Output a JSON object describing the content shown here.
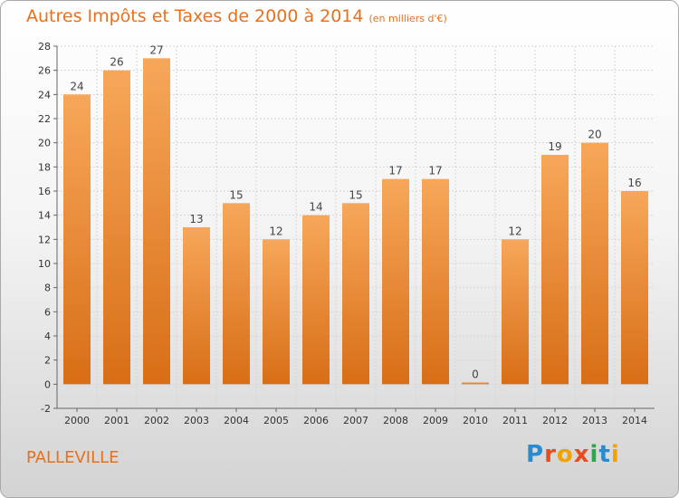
{
  "title": "Autres Impôts et Taxes de 2000 à 2014",
  "subtitle": "(en milliers d'€)",
  "commune": "PALLEVILLE",
  "logo": "Proxiti",
  "colors": {
    "bar_top": "#f7a75a",
    "bar_bottom": "#d86e16",
    "accent": "#e9701b"
  },
  "chart_data": {
    "type": "bar",
    "title": "Autres Impôts et Taxes de 2000 à 2014",
    "subtitle": "(en milliers d'€)",
    "categories": [
      "2000",
      "2001",
      "2002",
      "2003",
      "2004",
      "2005",
      "2006",
      "2007",
      "2008",
      "2009",
      "2010",
      "2011",
      "2012",
      "2013",
      "2014"
    ],
    "values": [
      24,
      26,
      27,
      13,
      15,
      12,
      14,
      15,
      17,
      17,
      0,
      12,
      19,
      20,
      16
    ],
    "yticks": [
      -2,
      0,
      2,
      4,
      6,
      8,
      10,
      12,
      14,
      16,
      18,
      20,
      22,
      24,
      26,
      28
    ],
    "ylim": [
      -2,
      28
    ],
    "grid": true
  }
}
